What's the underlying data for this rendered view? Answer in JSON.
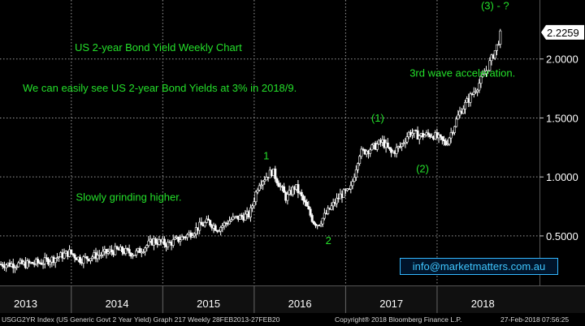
{
  "chart_data": {
    "type": "candlestick",
    "title": "US 2-year Bond Yield Weekly Chart",
    "subtitle": "We can easily see US 2-year Bond Yields at 3% in 2018/9.",
    "y_ticks": [
      "0.5000",
      "1.0000",
      "1.5000",
      "2.0000"
    ],
    "y_tick_values": [
      0.5,
      1.0,
      1.5,
      2.0
    ],
    "ylim": [
      0.08,
      2.5
    ],
    "x_ticks": [
      "2013",
      "2014",
      "2015",
      "2016",
      "2017",
      "2018"
    ],
    "x_tick_values": [
      2013.0,
      2014.0,
      2015.0,
      2016.0,
      2017.0,
      2018.0
    ],
    "year_boundaries": [
      2013.5,
      2014.5,
      2015.5,
      2016.5,
      2017.5
    ],
    "xlim": [
      2012.72,
      2018.62
    ],
    "last_price_label": "2.2259",
    "last_price": 2.2259,
    "grid": true,
    "series": [
      {
        "x": [
          2013.0,
          2013.2,
          2013.35,
          2013.48,
          2013.6,
          2013.75,
          2014.0,
          2014.2,
          2014.4,
          2014.55,
          2014.7,
          2014.8,
          2014.9,
          2015.0,
          2015.1,
          2015.25,
          2015.45,
          2015.55,
          2015.7,
          2015.85,
          2015.95,
          2016.05,
          2016.15,
          2016.2,
          2016.35,
          2016.45,
          2016.55,
          2016.65,
          2016.8,
          2016.9,
          2017.0,
          2017.1,
          2017.2,
          2017.3,
          2017.45,
          2017.6,
          2017.75,
          2017.95,
          2018.05,
          2018.15,
          2018.2
        ],
        "values": [
          0.26,
          0.28,
          0.32,
          0.36,
          0.3,
          0.33,
          0.38,
          0.35,
          0.46,
          0.43,
          0.48,
          0.52,
          0.58,
          0.62,
          0.56,
          0.64,
          0.68,
          0.95,
          1.05,
          0.82,
          0.92,
          0.78,
          0.62,
          0.6,
          0.75,
          0.85,
          0.88,
          1.2,
          1.25,
          1.3,
          1.2,
          1.26,
          1.38,
          1.35,
          1.36,
          1.28,
          1.55,
          1.78,
          1.92,
          2.1,
          2.2259
        ]
      }
    ],
    "annotations": [
      {
        "text": "Slowly grinding higher.",
        "x": 2013.55,
        "y": 0.8
      },
      {
        "text": "1",
        "x": 2015.6,
        "y": 1.15
      },
      {
        "text": "2",
        "x": 2016.28,
        "y": 0.43
      },
      {
        "text": "(1)",
        "x": 2016.78,
        "y": 1.47
      },
      {
        "text": "(2)",
        "x": 2017.27,
        "y": 1.04
      },
      {
        "text": "3rd wave acceleration.",
        "x": 2017.2,
        "y": 1.85
      },
      {
        "text": "(3) - ?",
        "x": 2017.98,
        "y": 2.42
      }
    ]
  },
  "watermark": "info@marketmatters.com.au",
  "footer": {
    "left": "USGG2YR Index (US Generic Govt 2 Year Yield) Graph 217  Weekly 28FEB2013-27FEB20",
    "middle": "Copyright® 2018 Bloomberg Finance L.P.",
    "right": "27-Feb-2018 07:56:25"
  },
  "colors": {
    "background": "#000000",
    "candles": "#ffffff",
    "annotation": "#24e02a",
    "grid": "#9a9a9a"
  }
}
